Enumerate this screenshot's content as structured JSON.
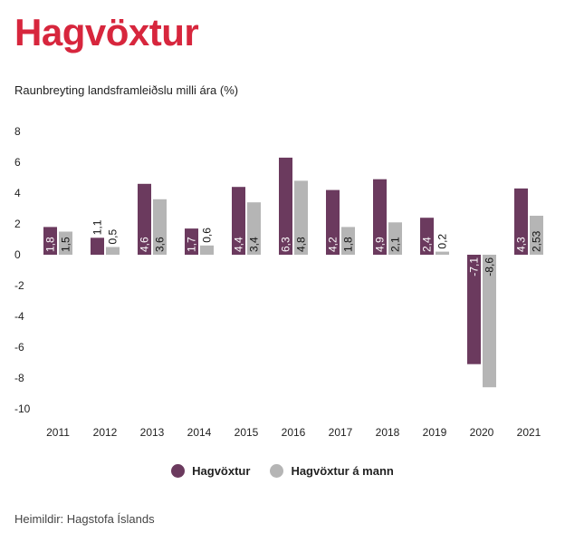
{
  "chart_data": {
    "type": "bar",
    "title": "Hagvöxtur",
    "subtitle": "Raunbreyting landsframleiðslu milli ára (%)",
    "categories": [
      "2011",
      "2012",
      "2013",
      "2014",
      "2015",
      "2016",
      "2017",
      "2018",
      "2019",
      "2020",
      "2021"
    ],
    "series": [
      {
        "name": "Hagvöxtur",
        "color": "#6b3a5e",
        "values": [
          1.8,
          1.1,
          4.6,
          1.7,
          4.4,
          6.3,
          4.2,
          4.9,
          2.4,
          -7.1,
          4.3
        ],
        "labels": [
          "1,8",
          "1,1",
          "4,6",
          "1,7",
          "4,4",
          "6,3",
          "4,2",
          "4,9",
          "2,4",
          "-7,1",
          "4,3"
        ]
      },
      {
        "name": "Hagvöxtur á mann",
        "color": "#b5b5b5",
        "values": [
          1.5,
          0.5,
          3.6,
          0.6,
          3.4,
          4.8,
          1.8,
          2.1,
          0.2,
          -8.6,
          2.53
        ],
        "labels": [
          "1,5",
          "0,5",
          "3,6",
          "0,6",
          "3,4",
          "4,8",
          "1,8",
          "2,1",
          "0,2",
          "-8,6",
          "2,53"
        ]
      }
    ],
    "yticks": [
      8,
      6,
      4,
      2,
      0,
      -2,
      -4,
      -6,
      -8,
      -10
    ],
    "ylim": [
      -10,
      8
    ],
    "grid": false,
    "legend": "bottom-center"
  },
  "source": "Heimildir: Hagstofa Íslands"
}
